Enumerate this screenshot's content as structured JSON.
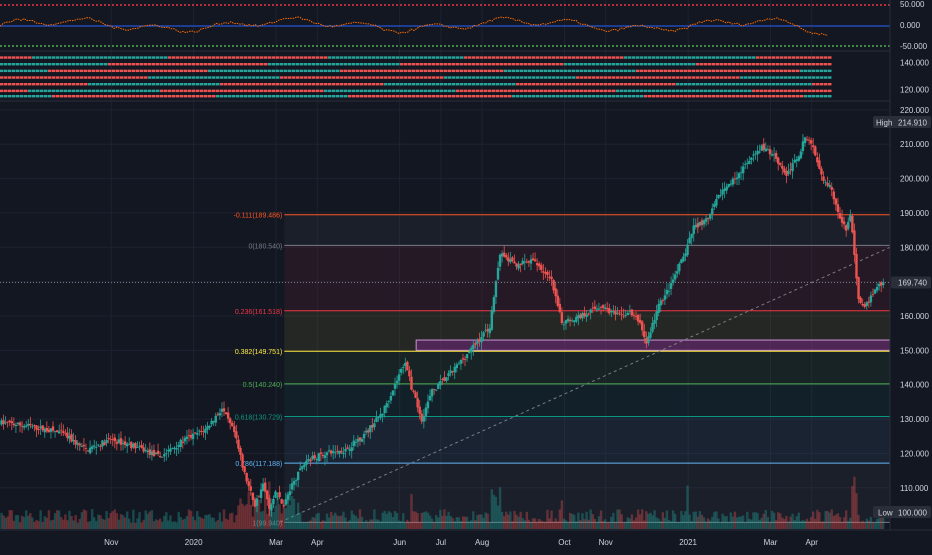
{
  "colors": {
    "background": "#131722",
    "grid": "#1e2230",
    "up": "#26a69a",
    "down": "#ef5350",
    "axis_text": "#d1d4dc",
    "price_tag_bg": "#2a2e39",
    "fib_0": "#787b86",
    "fib_0236": "#f23645",
    "fib_0382": "#ffeb3b",
    "fib_05": "#4caf50",
    "fib_0618": "#089981",
    "fib_0786": "#64b5f6",
    "fib_1": "#787b86",
    "fib_ext": "#ff5722",
    "trend_line": "#787b86",
    "zone": "#9c27b0",
    "oscillator_line": "#ff6d00"
  },
  "oscillator_pane": {
    "ticks": [
      "50.000",
      "0.000",
      "-50.000"
    ],
    "tick_values": [
      50,
      0,
      -50
    ],
    "ylim": [
      -60,
      60
    ]
  },
  "signal_pane": {
    "ticks": [
      "140.000",
      "120.000"
    ],
    "tick_values": [
      140,
      120
    ],
    "ylim": [
      112,
      148
    ]
  },
  "price_axis": {
    "ticks": [
      "220.000",
      "210.000",
      "200.000",
      "190.000",
      "180.000",
      "170.000",
      "160.000",
      "150.000",
      "140.000",
      "130.000",
      "120.000",
      "110.000"
    ],
    "tick_values": [
      220,
      210,
      200,
      190,
      180,
      170,
      160,
      150,
      140,
      130,
      120,
      110
    ]
  },
  "time_axis": {
    "labels": [
      "Nov",
      "2020",
      "Mar",
      "Apr",
      "Jun",
      "Jul",
      "Aug",
      "Oct",
      "Nov",
      "2021",
      "Mar",
      "Apr"
    ],
    "months": [
      0,
      2,
      4,
      5,
      7,
      8,
      9,
      11,
      12,
      14,
      16,
      17
    ]
  },
  "tags": {
    "high_label": "High",
    "high_value": "214.910",
    "current_value": "169.740",
    "low_label": "Low",
    "low_value": "100.000"
  },
  "fib_levels": [
    {
      "label": "-0.111(189.486)",
      "value": 189.486,
      "color_key": "fib_ext"
    },
    {
      "label": "0(180.540)",
      "value": 180.54,
      "color_key": "fib_0"
    },
    {
      "label": "0.236(161.518)",
      "value": 161.518,
      "color_key": "fib_0236"
    },
    {
      "label": "0.382(149.751)",
      "value": 149.751,
      "color_key": "fib_0382"
    },
    {
      "label": "0.5(140.240)",
      "value": 140.24,
      "color_key": "fib_05"
    },
    {
      "label": "0.618(130.729)",
      "value": 130.729,
      "color_key": "fib_0618"
    },
    {
      "label": "0.786(117.188)",
      "value": 117.188,
      "color_key": "fib_0786"
    },
    {
      "label": "1(99.940)",
      "value": 99.94,
      "color_key": "fib_1"
    }
  ],
  "chart_data": {
    "type": "candlestick",
    "x_unit": "month index (0 = Nov 2019)",
    "y_unit": "price",
    "ylim": [
      98,
      222
    ],
    "xlim": [
      -2.7,
      18.9
    ],
    "high": 214.91,
    "low": 100.0,
    "last": 169.74,
    "anchors": [
      [
        -2.7,
        129
      ],
      [
        -2.0,
        128
      ],
      [
        -1.2,
        126
      ],
      [
        -0.6,
        121
      ],
      [
        0.0,
        124
      ],
      [
        0.6,
        122
      ],
      [
        1.2,
        119
      ],
      [
        1.8,
        124
      ],
      [
        2.3,
        127
      ],
      [
        2.7,
        133
      ],
      [
        3.0,
        126
      ],
      [
        3.25,
        114
      ],
      [
        3.5,
        105
      ],
      [
        3.7,
        111
      ],
      [
        3.85,
        104
      ],
      [
        4.0,
        109
      ],
      [
        4.2,
        105
      ],
      [
        4.45,
        112
      ],
      [
        4.75,
        118
      ],
      [
        5.2,
        120
      ],
      [
        5.7,
        121
      ],
      [
        6.2,
        126
      ],
      [
        6.6,
        132
      ],
      [
        6.9,
        140
      ],
      [
        7.15,
        147
      ],
      [
        7.3,
        139
      ],
      [
        7.55,
        130
      ],
      [
        7.8,
        138
      ],
      [
        8.3,
        144
      ],
      [
        8.8,
        151
      ],
      [
        9.2,
        157
      ],
      [
        9.45,
        178
      ],
      [
        9.8,
        175
      ],
      [
        10.3,
        176
      ],
      [
        10.7,
        170
      ],
      [
        10.95,
        158
      ],
      [
        11.4,
        160
      ],
      [
        11.9,
        163
      ],
      [
        12.3,
        160
      ],
      [
        12.6,
        161
      ],
      [
        12.85,
        158
      ],
      [
        13.0,
        152
      ],
      [
        13.3,
        163
      ],
      [
        13.6,
        169
      ],
      [
        14.0,
        180
      ],
      [
        14.15,
        186
      ],
      [
        14.5,
        188
      ],
      [
        14.8,
        196
      ],
      [
        15.0,
        198
      ],
      [
        15.2,
        201
      ],
      [
        15.5,
        205
      ],
      [
        15.8,
        209
      ],
      [
        16.1,
        207
      ],
      [
        16.4,
        201
      ],
      [
        16.7,
        207
      ],
      [
        16.85,
        212
      ],
      [
        17.05,
        209
      ],
      [
        17.3,
        200
      ],
      [
        17.5,
        197
      ],
      [
        17.7,
        188
      ],
      [
        17.85,
        185
      ],
      [
        17.95,
        190
      ],
      [
        18.05,
        178
      ],
      [
        18.15,
        165
      ],
      [
        18.3,
        162
      ],
      [
        18.55,
        168
      ],
      [
        18.75,
        169.74
      ]
    ],
    "trend_line": {
      "from": [
        4.1,
        100
      ],
      "to": [
        18.9,
        180
      ]
    },
    "zone": {
      "from_x": 7.4,
      "to_x": 18.9,
      "top": 153,
      "bottom": 150
    }
  }
}
